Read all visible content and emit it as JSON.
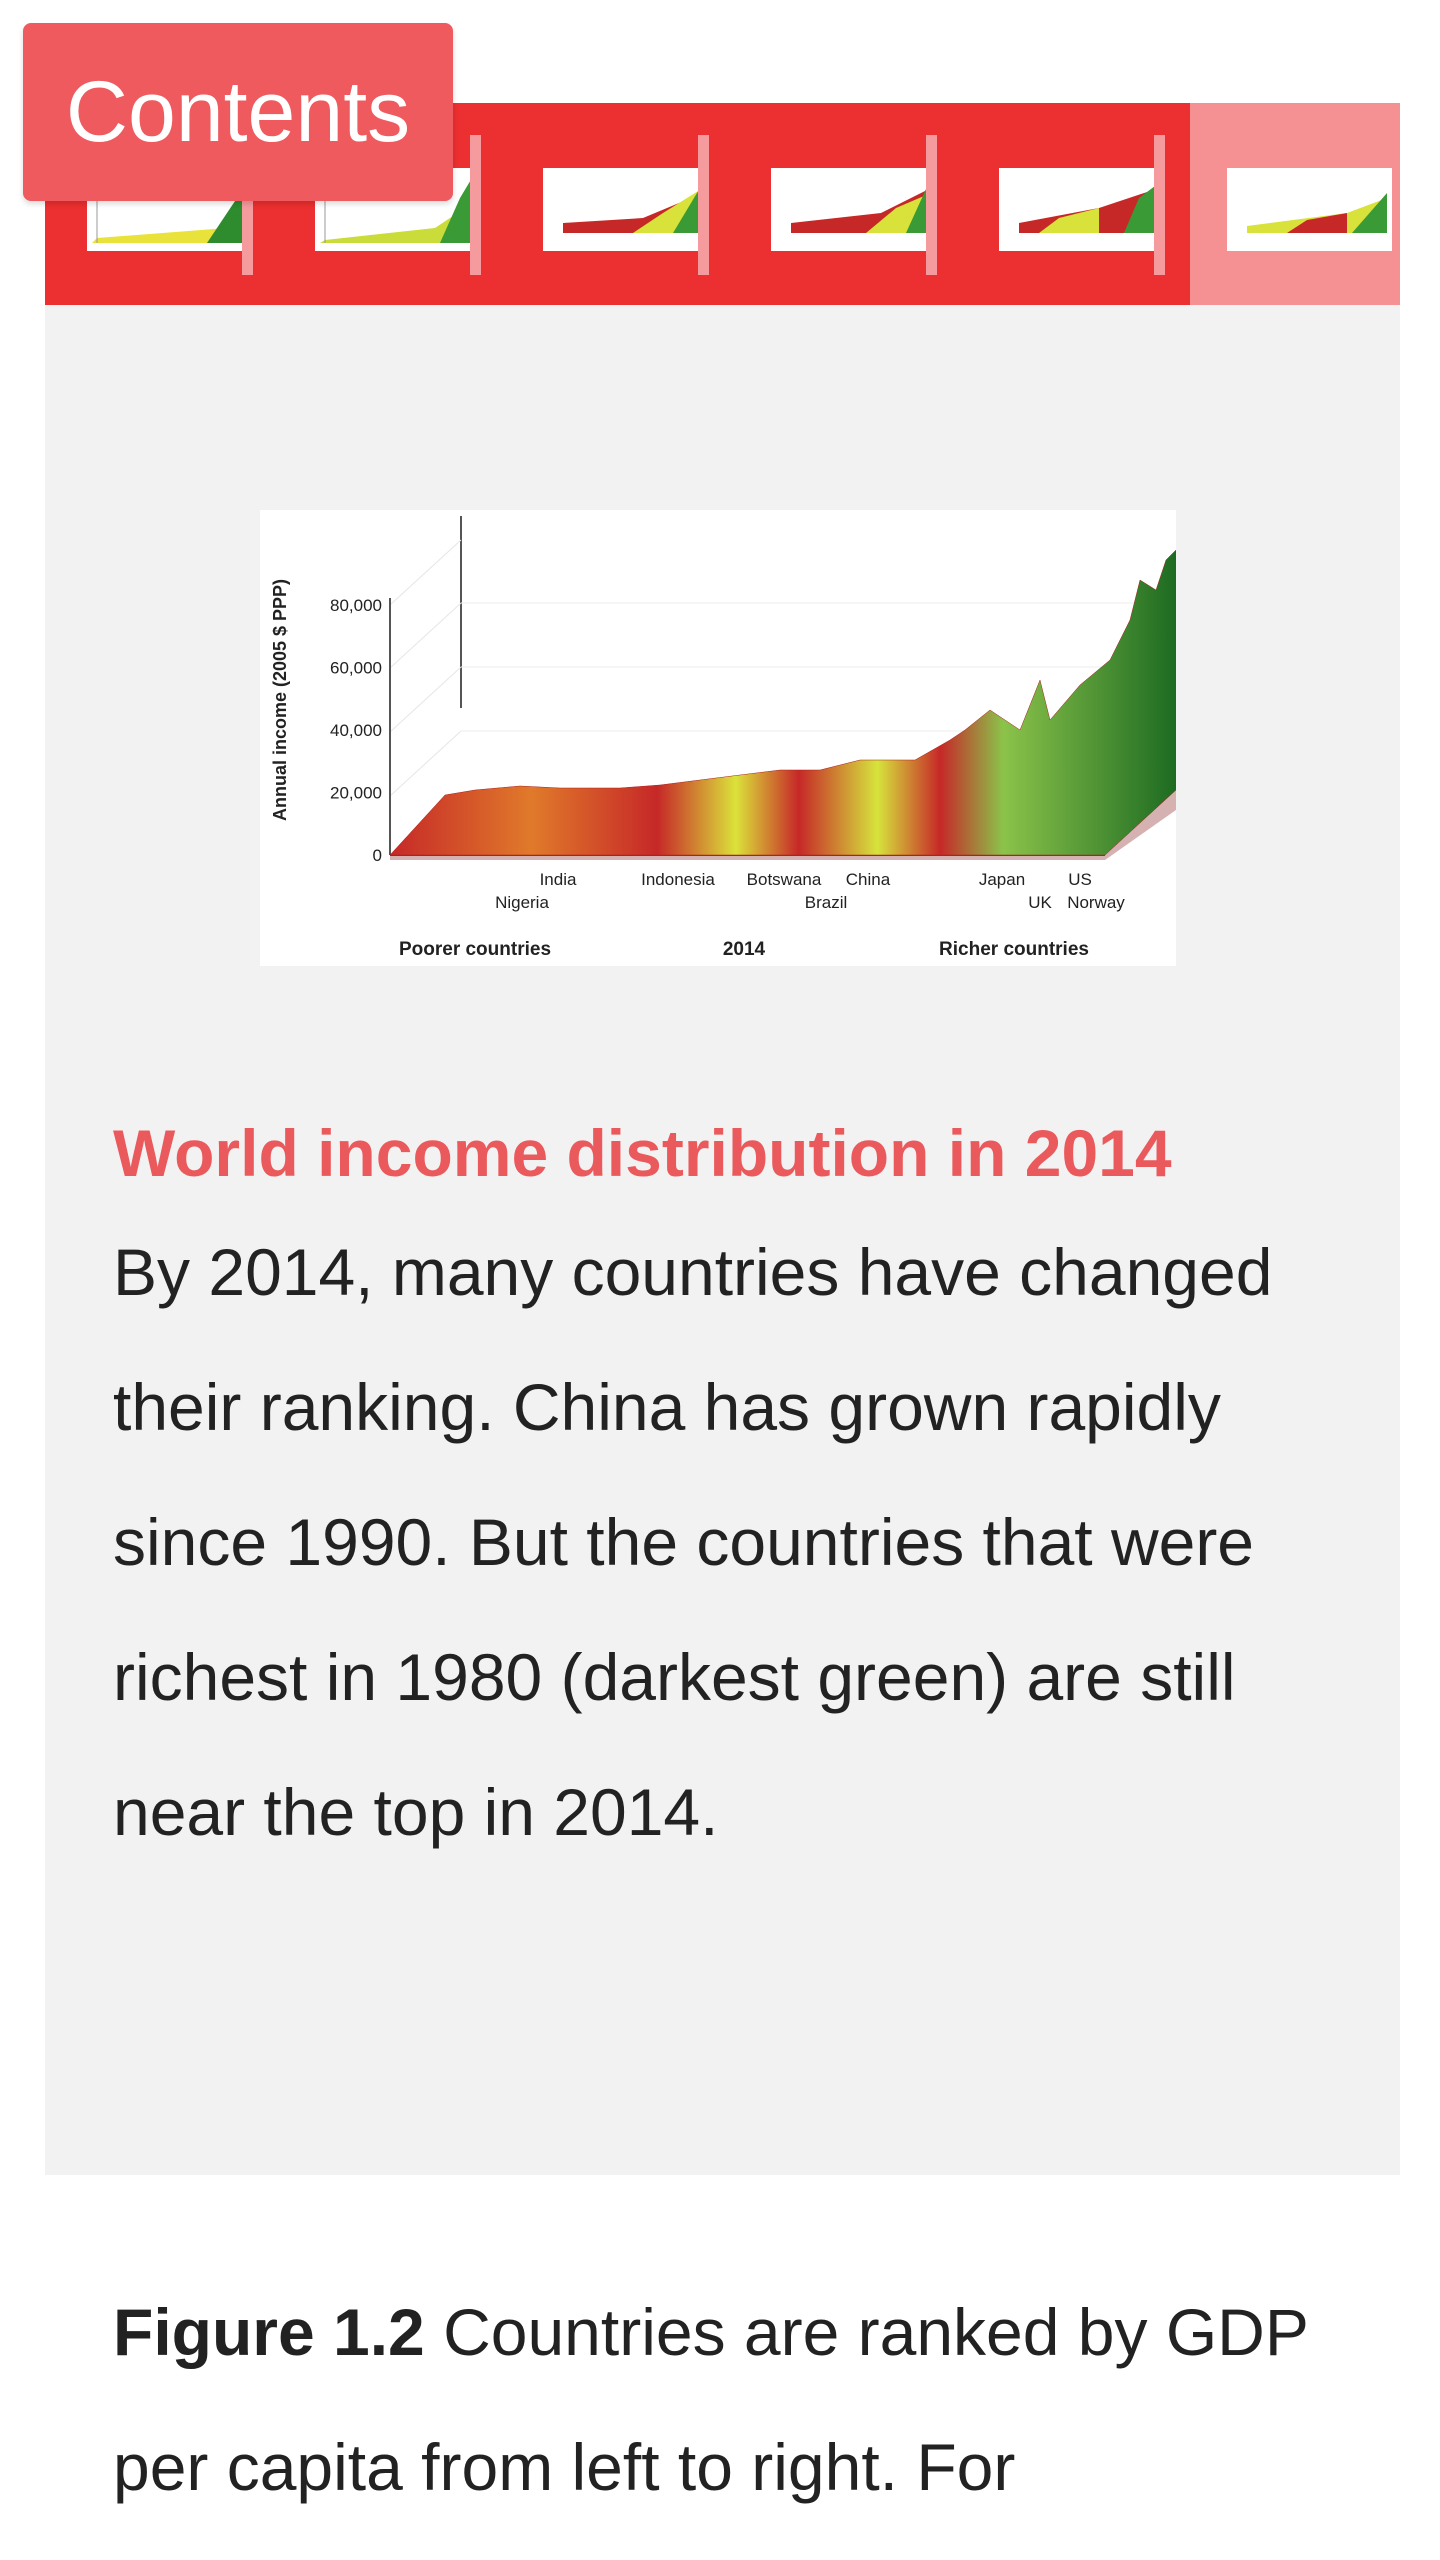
{
  "contents_button": {
    "label": "Contents"
  },
  "thumbnail_strip": {
    "count": 6,
    "active_index": 5
  },
  "panel": {
    "title": "World income distribution in 2014",
    "body": "By 2014, many countries have changed their ranking. China has grown rapidly since 1990. But the countries that were richest in 1980 (darkest green) are still near the top in 2014."
  },
  "figure_image": {
    "y_axis_label": "Annual income (2005 $ PPP)",
    "y_ticks": [
      "80,000",
      "60,000",
      "40,000",
      "20,000",
      "0"
    ],
    "country_labels_top": [
      "India",
      "Indonesia",
      "Botswana",
      "China",
      "Japan",
      "US"
    ],
    "country_labels_bottom": [
      "Nigeria",
      "Brazil",
      "UK",
      "Norway"
    ],
    "bottom_labels": {
      "left": "Poorer countries",
      "center": "2014",
      "right": "Richer countries"
    },
    "colors": {
      "poor": "#c62828",
      "mid": "#d8e23a",
      "rich": "#2e8b2e",
      "richest": "#1d6b22"
    }
  },
  "caption": {
    "figure_label": "Figure 1.2",
    "text": "Countries are ranked by GDP per capita from left to right. For"
  },
  "colors": {
    "accent": "#ef5a5e",
    "strip": "#ec2f30",
    "panel_bg": "#f2f2f2",
    "title": "#ea5a5c"
  }
}
